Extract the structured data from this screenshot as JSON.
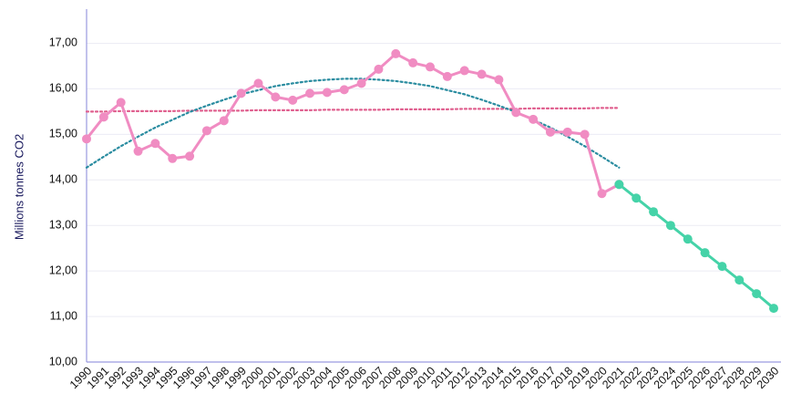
{
  "chart_data": {
    "type": "line",
    "y_label": "Millions tonnes CO2",
    "categories": [
      "1990",
      "1991",
      "1992",
      "1993",
      "1994",
      "1995",
      "1996",
      "1997",
      "1998",
      "1999",
      "2000",
      "2001",
      "2002",
      "2003",
      "2004",
      "2005",
      "2006",
      "2007",
      "2008",
      "2009",
      "2010",
      "2011",
      "2012",
      "2013",
      "2014",
      "2015",
      "2016",
      "2017",
      "2018",
      "2019",
      "2020",
      "2021",
      "2022",
      "2023",
      "2024",
      "2025",
      "2026",
      "2027",
      "2028",
      "2029",
      "2030"
    ],
    "series": [
      {
        "color": "#e0608f",
        "line_style": "dotted",
        "markers": false,
        "values": [
          15.5,
          15.5,
          15.51,
          15.51,
          15.51,
          15.51,
          15.52,
          15.52,
          15.52,
          15.52,
          15.53,
          15.53,
          15.53,
          15.53,
          15.54,
          15.54,
          15.54,
          15.54,
          15.55,
          15.55,
          15.55,
          15.55,
          15.56,
          15.56,
          15.56,
          15.56,
          15.57,
          15.57,
          15.57,
          15.57,
          15.58,
          15.58,
          null,
          null,
          null,
          null,
          null,
          null,
          null,
          null,
          null
        ]
      },
      {
        "color": "#2a8ca0",
        "line_style": "dotted",
        "markers": false,
        "values": [
          14.27,
          14.51,
          14.74,
          14.95,
          15.15,
          15.32,
          15.49,
          15.63,
          15.76,
          15.88,
          15.97,
          16.06,
          16.12,
          16.17,
          16.2,
          16.22,
          16.22,
          16.2,
          16.17,
          16.12,
          16.06,
          15.97,
          15.88,
          15.76,
          15.63,
          15.49,
          15.32,
          15.15,
          14.95,
          14.74,
          14.51,
          14.27,
          null,
          null,
          null,
          null,
          null,
          null,
          null,
          null,
          null
        ]
      },
      {
        "color": "#f08cc2",
        "line_style": "solid",
        "markers": true,
        "values": [
          14.9,
          15.38,
          15.7,
          14.63,
          14.8,
          14.47,
          14.52,
          15.08,
          15.3,
          15.9,
          16.12,
          15.82,
          15.75,
          15.9,
          15.92,
          15.98,
          16.12,
          16.43,
          16.77,
          16.57,
          16.48,
          16.27,
          16.4,
          16.32,
          16.2,
          15.48,
          15.33,
          15.05,
          15.05,
          15.0,
          13.7,
          13.9,
          null,
          null,
          null,
          null,
          null,
          null,
          null,
          null,
          null
        ]
      },
      {
        "color": "#45d3a8",
        "line_style": "solid",
        "markers": true,
        "values": [
          null,
          null,
          null,
          null,
          null,
          null,
          null,
          null,
          null,
          null,
          null,
          null,
          null,
          null,
          null,
          null,
          null,
          null,
          null,
          null,
          null,
          null,
          null,
          null,
          null,
          null,
          null,
          null,
          null,
          null,
          null,
          13.9,
          13.6,
          13.3,
          13.0,
          12.7,
          12.4,
          12.1,
          11.8,
          11.5,
          11.18
        ]
      }
    ],
    "ylim": [
      10,
      17.75
    ],
    "yticks": [
      {
        "value": 10,
        "label": "10,00"
      },
      {
        "value": 11,
        "label": "11,00"
      },
      {
        "value": 12,
        "label": "12,00"
      },
      {
        "value": 13,
        "label": "13,00"
      },
      {
        "value": 14,
        "label": "14,00"
      },
      {
        "value": 15,
        "label": "15,00"
      },
      {
        "value": 16,
        "label": "16,00"
      },
      {
        "value": 17,
        "label": "17,00"
      }
    ],
    "grid": true
  }
}
